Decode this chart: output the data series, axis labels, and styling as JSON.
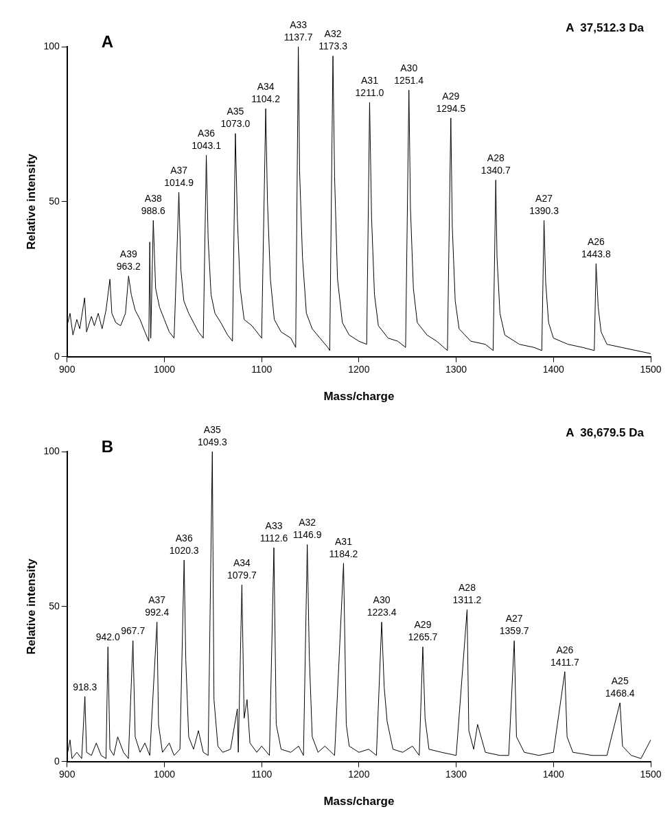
{
  "chart_data": [
    {
      "type": "line",
      "title": "A",
      "xlabel": "Mass/charge",
      "ylabel": "Relative intensity",
      "xlim": [
        900,
        1500
      ],
      "xticks": [
        900,
        1000,
        1100,
        1200,
        1300,
        1400,
        1500
      ],
      "ylim": [
        0,
        100
      ],
      "yticks": [
        0,
        50,
        100
      ],
      "marker": "none",
      "line_style": "solid",
      "legend": false,
      "series": [
        {
          "color": "#000000",
          "x": [
            900,
            903,
            906,
            910,
            913,
            918,
            920,
            925,
            928,
            932,
            936,
            940,
            944,
            946,
            950,
            955,
            960,
            963.2,
            966,
            970,
            975,
            980,
            984,
            985,
            986,
            988.6,
            991,
            995,
            1000,
            1005,
            1010,
            1014.9,
            1017,
            1020,
            1025,
            1030,
            1035,
            1040,
            1043.1,
            1045,
            1048,
            1052,
            1058,
            1065,
            1070,
            1073.0,
            1075,
            1078,
            1082,
            1090,
            1100,
            1104.2,
            1106,
            1109,
            1113,
            1120,
            1130,
            1135,
            1137.7,
            1139,
            1142,
            1146,
            1152,
            1160,
            1168,
            1170,
            1173.3,
            1175,
            1178,
            1183,
            1190,
            1200,
            1208,
            1211.0,
            1213,
            1216,
            1220,
            1230,
            1240,
            1248,
            1251.4,
            1253,
            1256,
            1260,
            1270,
            1280,
            1291,
            1294.5,
            1296,
            1299,
            1303,
            1315,
            1330,
            1338,
            1340.7,
            1342,
            1345,
            1350,
            1365,
            1380,
            1388,
            1390.3,
            1392,
            1395,
            1400,
            1415,
            1430,
            1442,
            1443.8,
            1446,
            1449,
            1455,
            1470,
            1485,
            1500
          ],
          "values": [
            10,
            14,
            7,
            12,
            9,
            19,
            8,
            13,
            10,
            14,
            9,
            15,
            25,
            14,
            11,
            10,
            14,
            26,
            20,
            15,
            12,
            8,
            5,
            37,
            6,
            44,
            22,
            16,
            12,
            8,
            6,
            53,
            28,
            18,
            14,
            11,
            8,
            6,
            65,
            38,
            20,
            14,
            11,
            7,
            5,
            72,
            45,
            22,
            12,
            10,
            6,
            80,
            50,
            25,
            12,
            8,
            6,
            3,
            100,
            60,
            32,
            14,
            9,
            6,
            3,
            2,
            97,
            58,
            25,
            11,
            7,
            5,
            4,
            82,
            45,
            20,
            10,
            6,
            5,
            3,
            86,
            48,
            22,
            11,
            7,
            5,
            2,
            77,
            42,
            18,
            9,
            5,
            4,
            2,
            57,
            32,
            14,
            7,
            4,
            3,
            2,
            44,
            24,
            11,
            6,
            4,
            3,
            2,
            30,
            16,
            8,
            4,
            3,
            2,
            1
          ]
        }
      ],
      "annotations": [
        "A  37,512.3 Da",
        {
          "text": "A39\n963.2",
          "x": 963.2,
          "y": 26
        },
        {
          "text": "A38\n988.6",
          "x": 988.6,
          "y": 44
        },
        {
          "text": "A37\n1014.9",
          "x": 1014.9,
          "y": 53
        },
        {
          "text": "A36\n1043.1",
          "x": 1043.1,
          "y": 65
        },
        {
          "text": "A35\n1073.0",
          "x": 1073.0,
          "y": 72
        },
        {
          "text": "A34\n1104.2",
          "x": 1104.2,
          "y": 80
        },
        {
          "text": "A33\n1137.7",
          "x": 1137.7,
          "y": 100
        },
        {
          "text": "A32\n1173.3",
          "x": 1173.3,
          "y": 97
        },
        {
          "text": "A31\n1211.0",
          "x": 1211.0,
          "y": 82
        },
        {
          "text": "A30\n1251.4",
          "x": 1251.4,
          "y": 86
        },
        {
          "text": "A29\n1294.5",
          "x": 1294.5,
          "y": 77
        },
        {
          "text": "A28\n1340.7",
          "x": 1340.7,
          "y": 57
        },
        {
          "text": "A27\n1390.3",
          "x": 1390.3,
          "y": 44
        },
        {
          "text": "A26\n1443.8",
          "x": 1443.8,
          "y": 30
        }
      ]
    },
    {
      "type": "line",
      "title": "B",
      "xlabel": "Mass/charge",
      "ylabel": "Relative intensity",
      "xlim": [
        900,
        1500
      ],
      "xticks": [
        900,
        1000,
        1100,
        1200,
        1300,
        1400,
        1500
      ],
      "ylim": [
        0,
        100
      ],
      "yticks": [
        0,
        50,
        100
      ],
      "marker": "none",
      "line_style": "solid",
      "legend": false,
      "series": [
        {
          "color": "#000000",
          "x": [
            900,
            903,
            905,
            910,
            915,
            918.3,
            920,
            925,
            930,
            935,
            940,
            942.0,
            944,
            948,
            952,
            958,
            963,
            967.7,
            970,
            975,
            980,
            985,
            992.4,
            994,
            998,
            1005,
            1010,
            1016,
            1020.3,
            1022,
            1025,
            1030,
            1035,
            1040,
            1045,
            1049.3,
            1051,
            1055,
            1060,
            1068,
            1075,
            1076,
            1079.7,
            1082,
            1085,
            1088,
            1095,
            1100,
            1108,
            1112.6,
            1115,
            1120,
            1130,
            1138,
            1143,
            1146.9,
            1149,
            1152,
            1158,
            1165,
            1175,
            1184.2,
            1187,
            1190,
            1200,
            1210,
            1218,
            1223.4,
            1226,
            1229,
            1235,
            1245,
            1255,
            1262,
            1265.7,
            1268,
            1272,
            1285,
            1300,
            1311.2,
            1313,
            1318,
            1322,
            1330,
            1345,
            1354,
            1359.7,
            1362,
            1370,
            1385,
            1400,
            1411.7,
            1414,
            1420,
            1440,
            1455,
            1468.4,
            1471,
            1480,
            1490,
            1500
          ],
          "values": [
            2,
            7,
            1,
            3,
            1,
            21,
            3,
            2,
            6,
            2,
            1,
            37,
            4,
            2,
            8,
            3,
            1,
            39,
            8,
            3,
            6,
            2,
            45,
            12,
            3,
            6,
            2,
            4,
            65,
            33,
            8,
            4,
            10,
            3,
            2,
            100,
            20,
            5,
            3,
            4,
            17,
            3,
            57,
            14,
            20,
            6,
            3,
            5,
            2,
            69,
            12,
            4,
            3,
            5,
            2,
            70,
            34,
            8,
            3,
            5,
            2,
            64,
            12,
            5,
            3,
            4,
            2,
            45,
            24,
            13,
            4,
            3,
            5,
            2,
            37,
            14,
            4,
            3,
            2,
            49,
            10,
            4,
            12,
            3,
            2,
            2,
            39,
            8,
            3,
            2,
            3,
            29,
            8,
            3,
            2,
            2,
            19,
            5,
            2,
            1,
            7
          ]
        }
      ],
      "annotations": [
        "A  36,679.5 Da",
        {
          "text": "918.3",
          "x": 918.3,
          "y": 21
        },
        {
          "text": "942.0",
          "x": 942.0,
          "y": 37
        },
        {
          "text": "967.7",
          "x": 967.7,
          "y": 39
        },
        {
          "text": "A37\n992.4",
          "x": 992.4,
          "y": 45
        },
        {
          "text": "A36\n1020.3",
          "x": 1020.3,
          "y": 65
        },
        {
          "text": "A35\n1049.3",
          "x": 1049.3,
          "y": 100
        },
        {
          "text": "A34\n1079.7",
          "x": 1079.7,
          "y": 57
        },
        {
          "text": "A33\n1112.6",
          "x": 1112.6,
          "y": 69
        },
        {
          "text": "A32\n1146.9",
          "x": 1146.9,
          "y": 70
        },
        {
          "text": "A31\n1184.2",
          "x": 1184.2,
          "y": 64
        },
        {
          "text": "A30\n1223.4",
          "x": 1223.4,
          "y": 45
        },
        {
          "text": "A29\n1265.7",
          "x": 1265.7,
          "y": 37
        },
        {
          "text": "A28\n1311.2",
          "x": 1311.2,
          "y": 49
        },
        {
          "text": "A27\n1359.7",
          "x": 1359.7,
          "y": 39
        },
        {
          "text": "A26\n1411.7",
          "x": 1411.7,
          "y": 29
        },
        {
          "text": "A25\n1468.4",
          "x": 1468.4,
          "y": 19
        }
      ]
    }
  ]
}
